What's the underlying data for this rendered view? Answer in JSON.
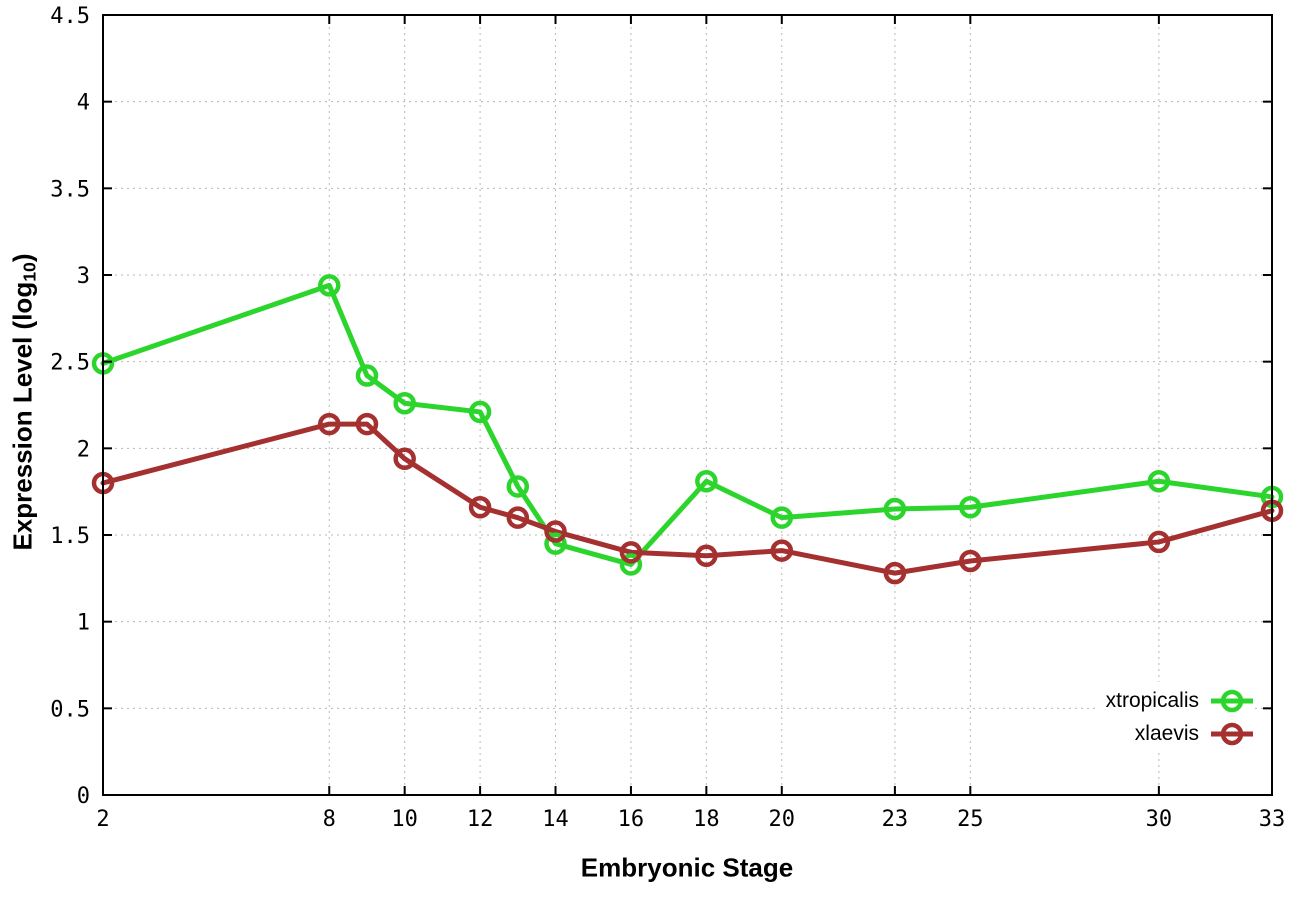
{
  "chart_data": {
    "type": "line",
    "title": "",
    "xlabel": "Embryonic Stage",
    "ylabel": "Expression Level (log10)",
    "ylabel_parts": {
      "prefix": "Expression Level (log",
      "sub": "10",
      "suffix": ")"
    },
    "x": [
      2,
      8,
      9,
      10,
      12,
      13,
      14,
      16,
      18,
      20,
      23,
      25,
      30,
      33
    ],
    "series": [
      {
        "name": "xtropicalis",
        "color": "#2cd52c",
        "values": [
          2.49,
          2.94,
          2.42,
          2.26,
          2.21,
          1.78,
          1.45,
          1.33,
          1.81,
          1.6,
          1.65,
          1.66,
          1.81,
          1.72
        ]
      },
      {
        "name": "xlaevis",
        "color": "#a53030",
        "values": [
          1.8,
          2.14,
          2.14,
          1.94,
          1.66,
          1.6,
          1.52,
          1.4,
          1.38,
          1.41,
          1.28,
          1.35,
          1.46,
          1.64
        ]
      }
    ],
    "xlim": [
      2,
      33
    ],
    "ylim": [
      0,
      4.5
    ],
    "xticks": [
      2,
      8,
      10,
      12,
      14,
      16,
      18,
      20,
      23,
      25,
      30,
      33
    ],
    "yticks": [
      0,
      0.5,
      1,
      1.5,
      2,
      2.5,
      3,
      3.5,
      4,
      4.5
    ],
    "ytick_labels": [
      "0",
      "0.5",
      "1",
      "1.5",
      "2",
      "2.5",
      "3",
      "3.5",
      "4",
      "4.5"
    ],
    "grid": true,
    "grid_color": "#b8b8b8",
    "border_color": "#000000",
    "legend_position": "bottom-right-inside",
    "line_width": 5,
    "marker": "open-circle",
    "marker_radius": 9,
    "marker_stroke": 4.5
  }
}
